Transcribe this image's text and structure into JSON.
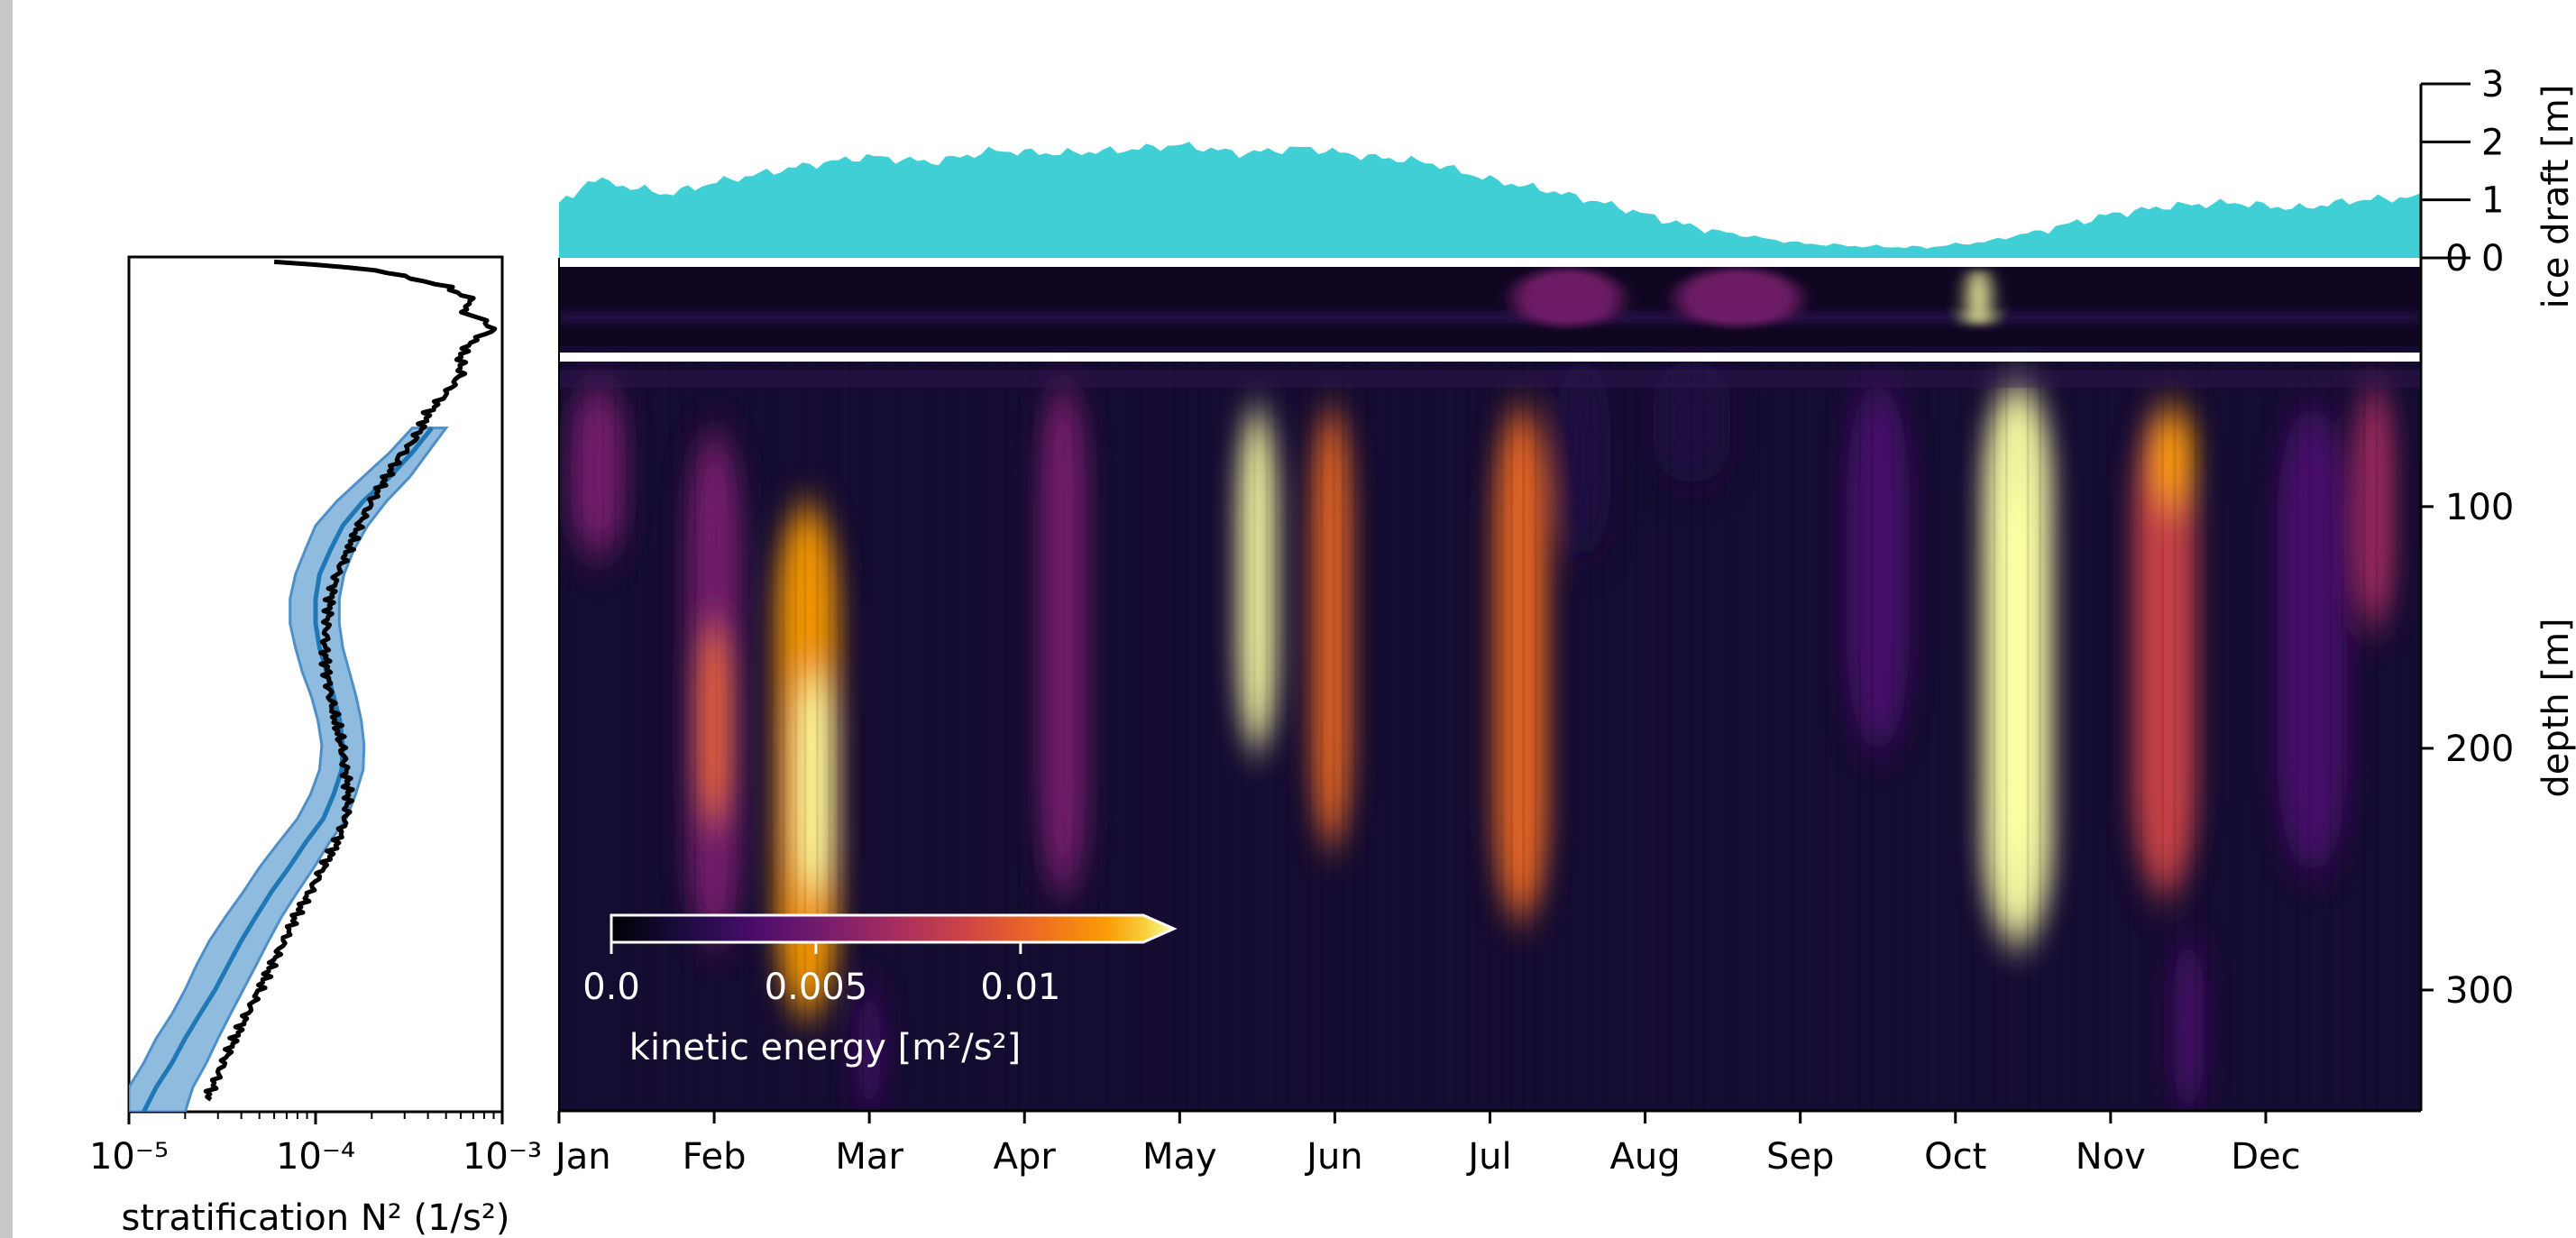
{
  "chart_data": [
    {
      "type": "area",
      "name": "ice-draft-panel",
      "ylabel": "ice draft [m]",
      "ylim": [
        0,
        3
      ],
      "yticks": [
        "0",
        "1",
        "2",
        "3"
      ],
      "color": "#40CFD5",
      "x_months": [
        0,
        0.1,
        0.2,
        0.3,
        0.5,
        0.7,
        1.0,
        1.3,
        1.6,
        2.0,
        2.4,
        2.8,
        3.2,
        3.6,
        4.0,
        4.4,
        4.8,
        5.2,
        5.6,
        6.0,
        6.4,
        6.8,
        7.2,
        7.6,
        8.0,
        8.4,
        8.8,
        9.2,
        9.6,
        10.0,
        10.4,
        10.8,
        11.2,
        11.6,
        12.0
      ],
      "values": [
        0.95,
        1.05,
        1.4,
        1.3,
        1.2,
        1.1,
        1.3,
        1.45,
        1.6,
        1.75,
        1.65,
        1.85,
        1.8,
        1.85,
        1.95,
        1.8,
        1.9,
        1.75,
        1.65,
        1.35,
        1.15,
        0.9,
        0.6,
        0.4,
        0.25,
        0.2,
        0.18,
        0.28,
        0.5,
        0.75,
        0.9,
        0.95,
        0.85,
        1.0,
        1.05
      ]
    },
    {
      "type": "heatmap",
      "name": "kinetic-energy-panel",
      "ylabel": "depth [m]",
      "ylim": [
        350,
        0
      ],
      "yticks": [
        "0",
        "100",
        "200",
        "300"
      ],
      "xlabels": [
        "Jan",
        "Feb",
        "Mar",
        "Apr",
        "May",
        "Jun",
        "Jul",
        "Aug",
        "Sep",
        "Oct",
        "Nov",
        "Dec"
      ],
      "colormap": "inferno",
      "colorbar": {
        "label": "kinetic energy [m²/s²]",
        "ticks": [
          "0.0",
          "0.005",
          "0.01"
        ],
        "range": [
          0,
          0.013
        ]
      },
      "near_surface_band_m": [
        0,
        40
      ],
      "events": [
        {
          "month": 0.25,
          "width": 0.35,
          "d0": 50,
          "d1": 120,
          "ke": 0.005
        },
        {
          "month": 1.0,
          "width": 0.35,
          "d0": 70,
          "d1": 280,
          "ke": 0.006
        },
        {
          "month": 1.0,
          "width": 0.18,
          "d0": 150,
          "d1": 230,
          "ke": 0.011
        },
        {
          "month": 1.6,
          "width": 0.4,
          "d0": 100,
          "d1": 310,
          "ke": 0.012
        },
        {
          "month": 1.65,
          "width": 0.22,
          "d0": 170,
          "d1": 260,
          "ke": 0.015
        },
        {
          "month": 3.25,
          "width": 0.3,
          "d0": 50,
          "d1": 260,
          "ke": 0.006
        },
        {
          "month": 4.5,
          "width": 0.25,
          "d0": 60,
          "d1": 200,
          "ke": 0.015
        },
        {
          "month": 4.98,
          "width": 0.25,
          "d0": 60,
          "d1": 240,
          "ke": 0.011
        },
        {
          "month": 6.2,
          "width": 0.34,
          "d0": 60,
          "d1": 270,
          "ke": 0.01
        },
        {
          "month": 6.6,
          "width": 0.35,
          "d0": 40,
          "d1": 120,
          "ke": 0.003
        },
        {
          "month": 7.3,
          "width": 0.5,
          "d0": 40,
          "d1": 90,
          "ke": 0.003
        },
        {
          "month": 8.5,
          "width": 0.4,
          "d0": 50,
          "d1": 200,
          "ke": 0.004
        },
        {
          "month": 9.4,
          "width": 0.45,
          "d0": 50,
          "d1": 280,
          "ke": 0.014
        },
        {
          "month": 9.4,
          "width": 0.28,
          "d0": 90,
          "d1": 250,
          "ke": 0.018
        },
        {
          "month": 10.35,
          "width": 0.4,
          "d0": 60,
          "d1": 260,
          "ke": 0.009
        },
        {
          "month": 10.4,
          "width": 0.28,
          "d0": 60,
          "d1": 100,
          "ke": 0.012
        },
        {
          "month": 11.3,
          "width": 0.45,
          "d0": 60,
          "d1": 250,
          "ke": 0.004
        },
        {
          "month": 11.7,
          "width": 0.25,
          "d0": 50,
          "d1": 150,
          "ke": 0.007
        },
        {
          "month": 10.5,
          "width": 0.2,
          "d0": 280,
          "d1": 350,
          "ke": 0.004
        },
        {
          "month": 2.0,
          "width": 0.15,
          "d0": 300,
          "d1": 350,
          "ke": 0.004
        }
      ],
      "surface_events": [
        {
          "month": 6.5,
          "width": 0.7,
          "ke": 0.006
        },
        {
          "month": 7.6,
          "width": 0.8,
          "ke": 0.005
        },
        {
          "month": 9.15,
          "width": 0.15,
          "ke": 0.014
        }
      ]
    },
    {
      "type": "line",
      "name": "stratification-panel",
      "xlabel": "stratification N² (1/s²)",
      "xscale": "log",
      "xlim": [
        1e-05,
        0.001
      ],
      "xticks": [
        "10⁻⁵",
        "10⁻⁴",
        "10⁻³"
      ],
      "ylim": [
        350,
        0
      ],
      "profile": {
        "color": "#000000",
        "depth": [
          2,
          5,
          12,
          18,
          22,
          26,
          30,
          34,
          40,
          48,
          56,
          64,
          70,
          76,
          82,
          90,
          100,
          110,
          120,
          130,
          140,
          150,
          160,
          170,
          180,
          190,
          200,
          210,
          220,
          230,
          240,
          250,
          260,
          270,
          280,
          290,
          300,
          310,
          320,
          330,
          340,
          345
        ],
        "n2": [
          6e-05,
          0.0002,
          0.0005,
          0.0007,
          0.0006,
          0.0008,
          0.0009,
          0.0007,
          0.0006,
          0.0006,
          0.0005,
          0.0004,
          0.00037,
          0.00033,
          0.00028,
          0.00024,
          0.0002,
          0.00017,
          0.00015,
          0.00013,
          0.00012,
          0.000115,
          0.000112,
          0.000115,
          0.00012,
          0.000128,
          0.000138,
          0.000145,
          0.00015,
          0.000145,
          0.00013,
          0.00011,
          9.3e-05,
          7.8e-05,
          6.8e-05,
          5.8e-05,
          5e-05,
          4.3e-05,
          3.7e-05,
          3.2e-05,
          2.8e-05,
          2.6e-05
        ]
      },
      "model": {
        "color": "#1F77B4",
        "band_color": "#7BAFD9",
        "depth": [
          70,
          80,
          90,
          100,
          110,
          120,
          130,
          140,
          150,
          160,
          170,
          180,
          190,
          200,
          210,
          220,
          230,
          240,
          250,
          260,
          270,
          280,
          290,
          300,
          310,
          320,
          330,
          340,
          350
        ],
        "n2": [
          0.00042,
          0.00033,
          0.00025,
          0.00018,
          0.00014,
          0.00012,
          0.000105,
          0.0001,
          0.0001,
          0.000105,
          0.000115,
          0.000125,
          0.000135,
          0.00014,
          0.000138,
          0.000125,
          0.00011,
          8.8e-05,
          7.2e-05,
          5.8e-05,
          4.8e-05,
          4e-05,
          3.4e-05,
          2.9e-05,
          2.4e-05,
          2e-05,
          1.7e-05,
          1.4e-05,
          1.2e-05
        ],
        "n2_low": [
          0.00033,
          0.00025,
          0.00018,
          0.00013,
          0.0001,
          8.8e-05,
          7.8e-05,
          7.3e-05,
          7.3e-05,
          7.8e-05,
          8.5e-05,
          9.5e-05,
          0.000103,
          0.000108,
          0.000105,
          9.4e-05,
          8e-05,
          6.3e-05,
          5e-05,
          4.1e-05,
          3.3e-05,
          2.7e-05,
          2.3e-05,
          2e-05,
          1.7e-05,
          1.4e-05,
          1.2e-05,
          1e-05,
          1e-05
        ],
        "n2_high": [
          0.0005,
          0.0004,
          0.00032,
          0.00024,
          0.00019,
          0.00016,
          0.000142,
          0.000134,
          0.000134,
          0.00014,
          0.000152,
          0.000165,
          0.000176,
          0.000182,
          0.00018,
          0.000164,
          0.000146,
          0.000118,
          9.8e-05,
          8e-05,
          6.6e-05,
          5.6e-05,
          4.8e-05,
          4.1e-05,
          3.5e-05,
          3e-05,
          2.6e-05,
          2.2e-05,
          2e-05
        ]
      }
    }
  ]
}
